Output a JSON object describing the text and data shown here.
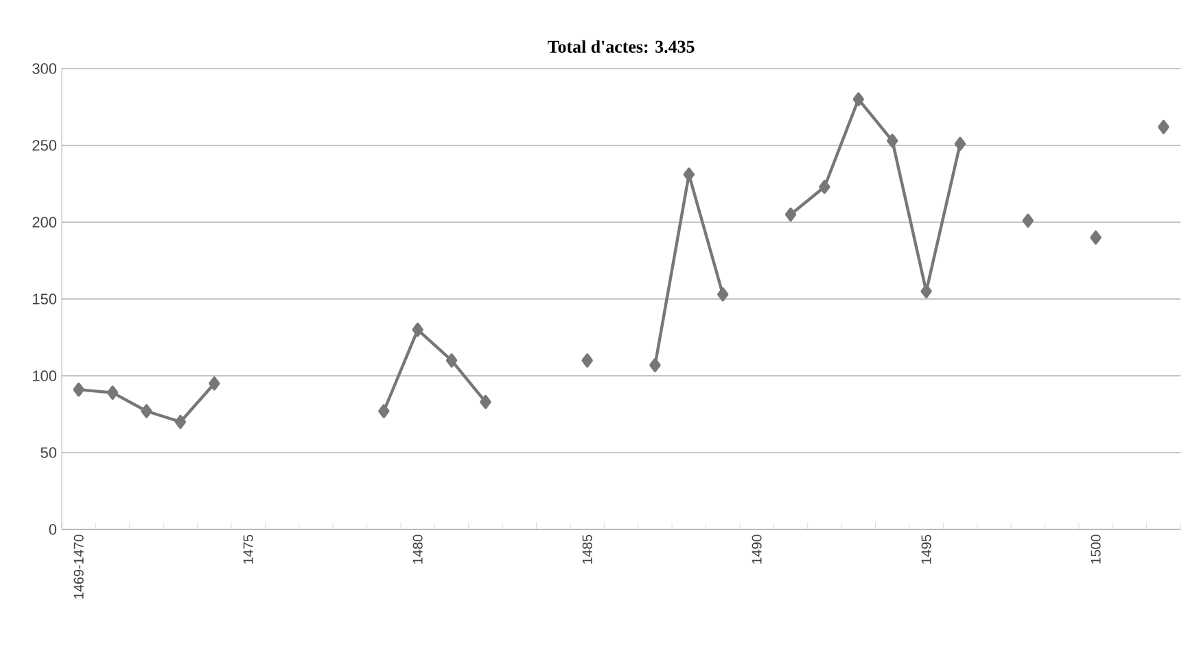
{
  "chart_data": {
    "type": "line",
    "title": "Total d'actes: 3.435",
    "categories": [
      "1469-1470",
      null,
      null,
      null,
      null,
      "1475",
      null,
      null,
      null,
      null,
      "1480",
      null,
      null,
      null,
      null,
      "1485",
      null,
      null,
      null,
      null,
      "1490",
      null,
      null,
      null,
      null,
      "1495",
      null,
      null,
      null,
      null,
      "1500",
      null,
      null
    ],
    "series": [
      {
        "color": "#777777",
        "values": [
          91,
          89,
          77,
          70,
          95,
          null,
          null,
          null,
          null,
          77,
          130,
          110,
          83,
          null,
          null,
          110,
          null,
          107,
          231,
          153,
          null,
          205,
          223,
          280,
          253,
          155,
          251,
          null,
          201,
          null,
          190,
          null,
          262
        ]
      }
    ],
    "ylim": [
      0,
      300
    ],
    "yticks": [
      0,
      50,
      100,
      150,
      200,
      250,
      300
    ],
    "grid": "y",
    "marker": "diamond",
    "line_style": "solid"
  }
}
